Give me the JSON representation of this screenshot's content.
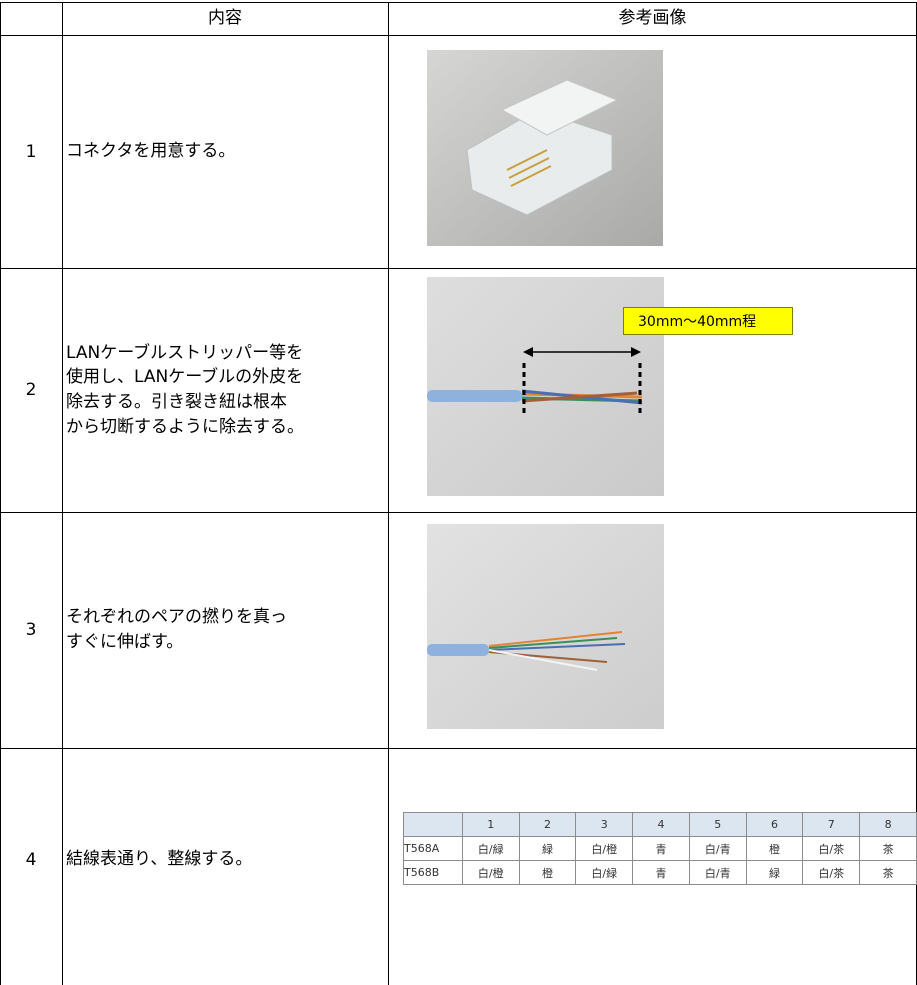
{
  "header": {
    "columns": [
      "内容",
      "参考画像"
    ]
  },
  "rows": [
    {
      "number": 1,
      "lines": [
        "コネクタを用意する。"
      ]
    },
    {
      "number": 2,
      "lines": [
        "LANケーブルストリッパー等を",
        "使用し、LANケーブルの外皮を",
        "除去する。引き裂き紐は根本",
        "から切断するように除去する。"
      ],
      "image_label": "30mm〜40mm程"
    },
    {
      "number": 3,
      "lines": [
        "それぞれのペアの撚りを真っ",
        "すぐに伸ばす。"
      ]
    },
    {
      "number": 4,
      "lines": [
        "結線表通り、整線する。"
      ]
    }
  ],
  "wiring_table": {
    "header": [
      1,
      2,
      3,
      4,
      5,
      6,
      7,
      8
    ],
    "rows": [
      {
        "name": "T568A",
        "cells": [
          "白/緑",
          "緑",
          "白/橙",
          "青",
          "白/青",
          "橙",
          "白/茶",
          "茶"
        ]
      },
      {
        "name": "T568B",
        "cells": [
          "白/橙",
          "橙",
          "白/緑",
          "青",
          "白/青",
          "緑",
          "白/茶",
          "茶"
        ]
      }
    ]
  }
}
